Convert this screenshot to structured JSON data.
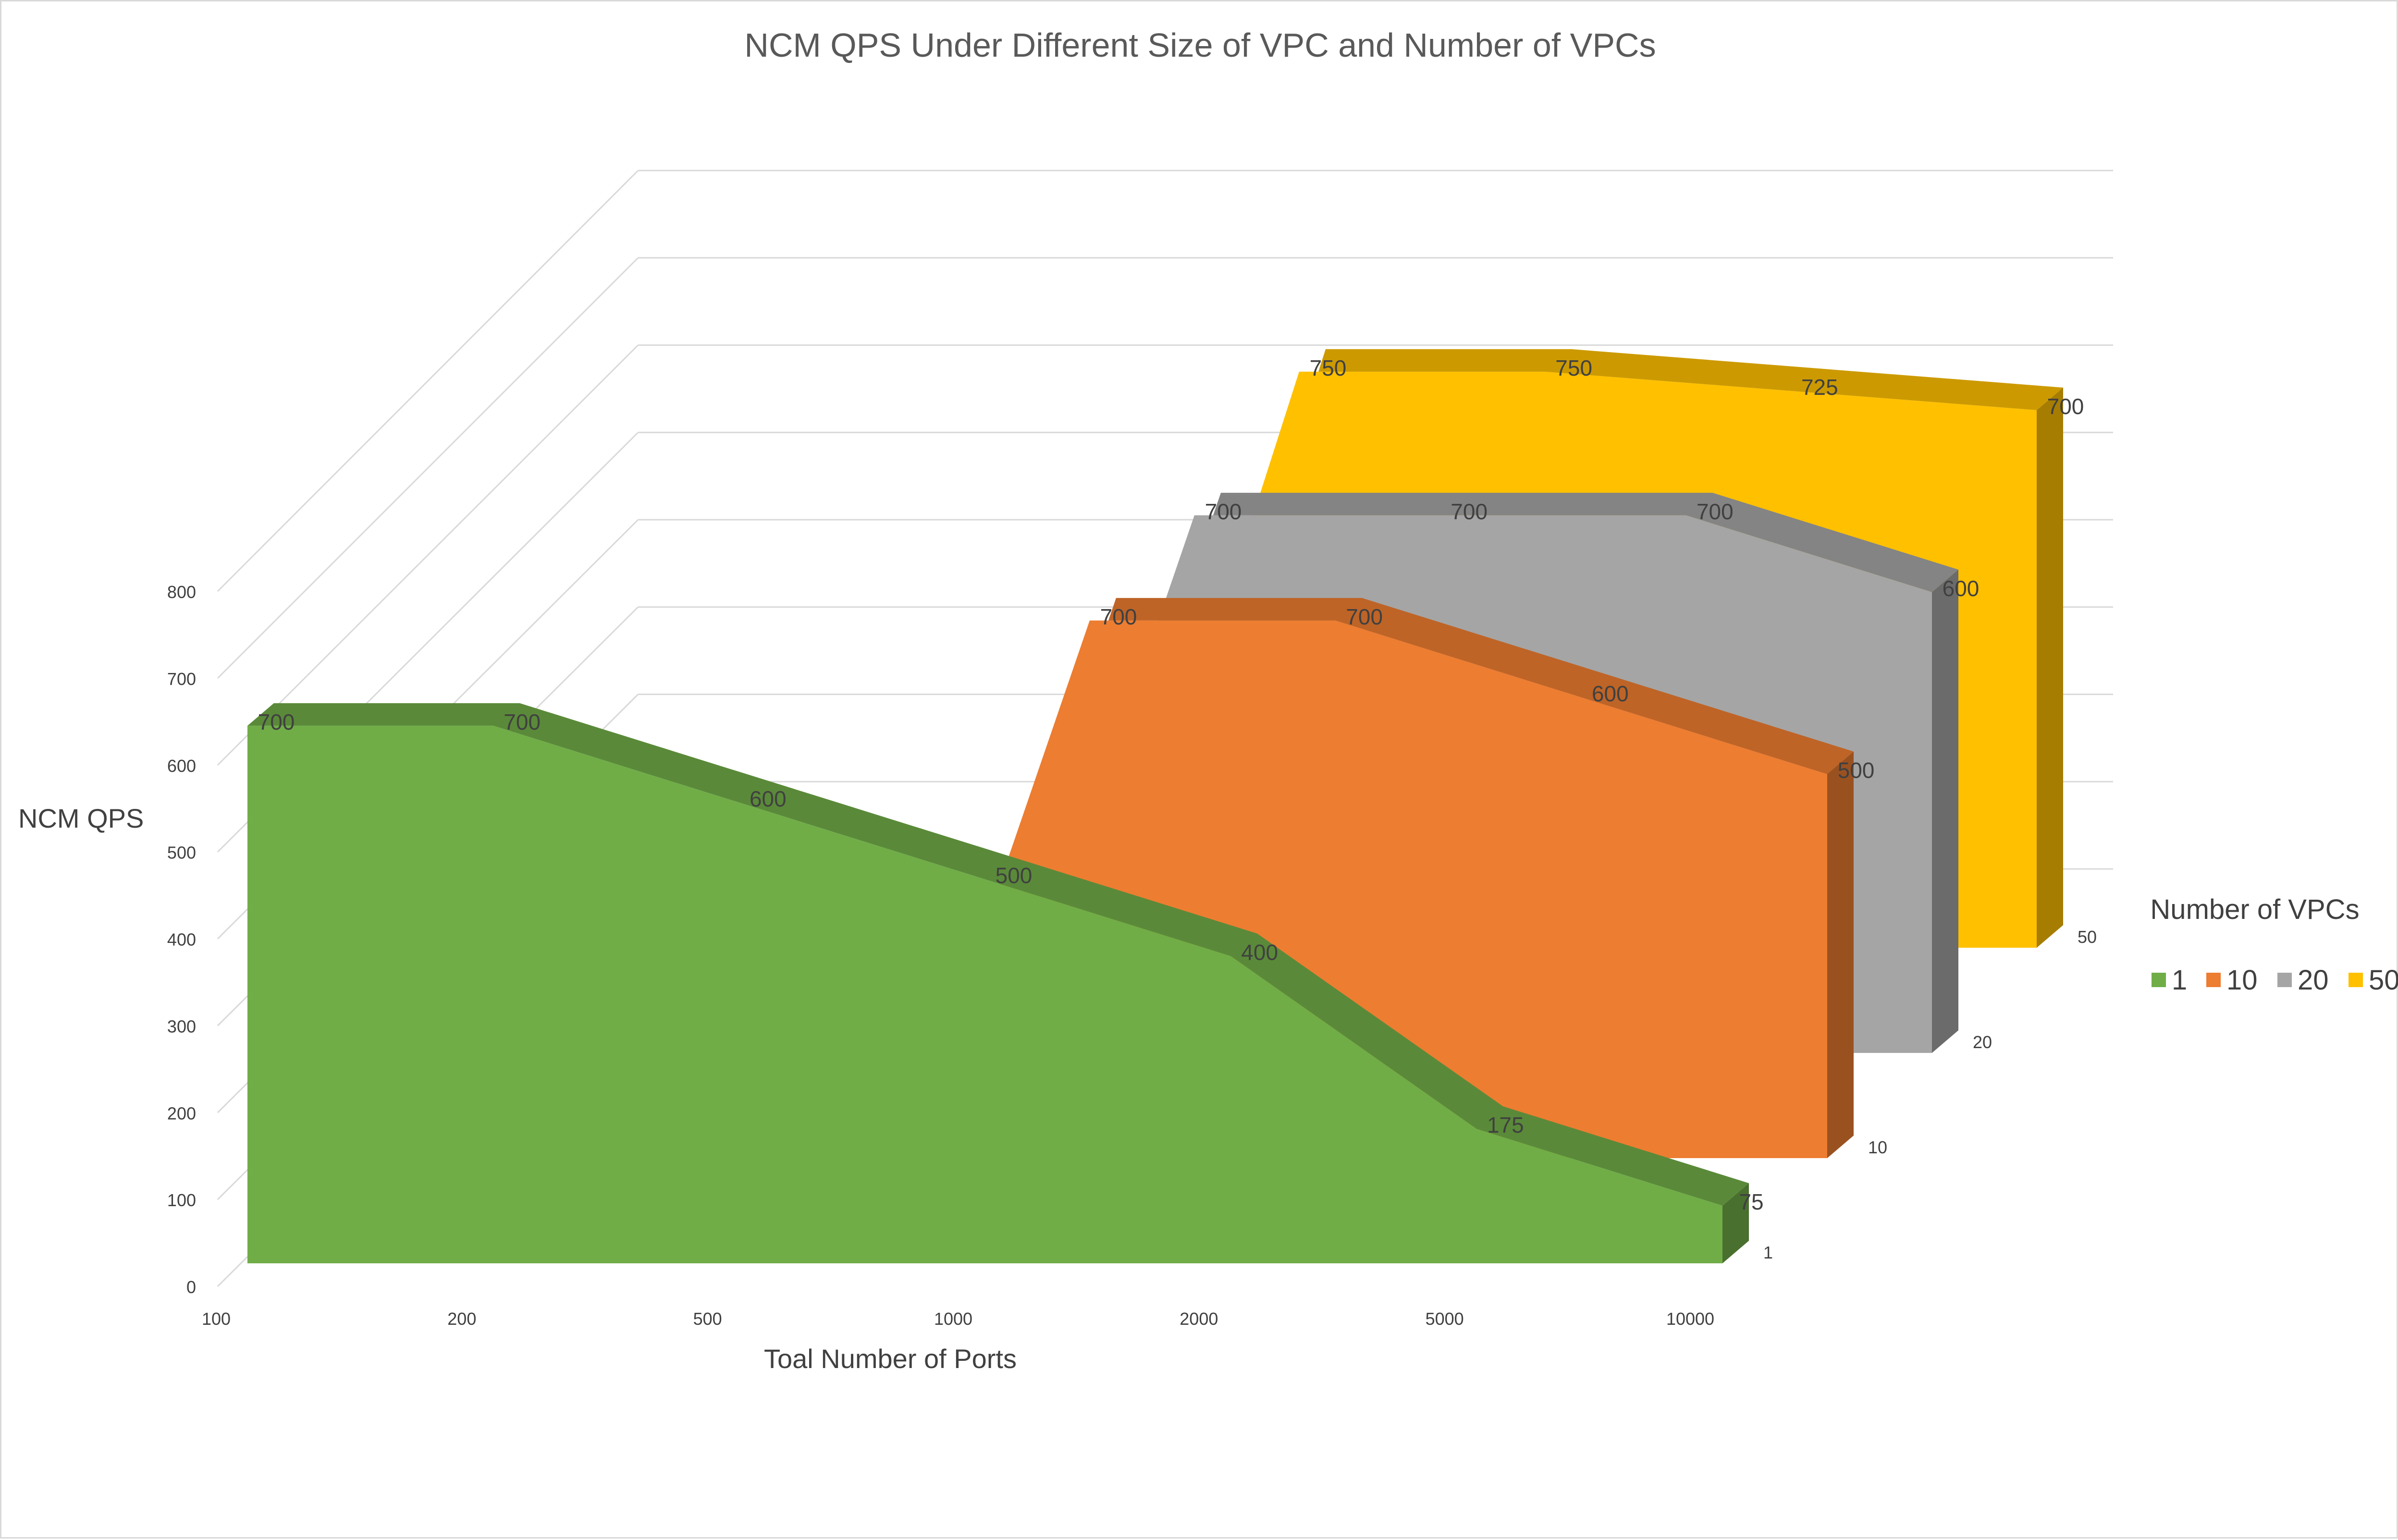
{
  "chart_data": {
    "type": "area",
    "subtype": "3d-area",
    "title": "NCM QPS Under Different Size of VPC and Number of VPCs",
    "xlabel": "Toal Number of Ports",
    "ylabel": "NCM QPS",
    "categories": [
      "100",
      "200",
      "500",
      "1000",
      "2000",
      "5000",
      "10000"
    ],
    "ylim": [
      0,
      800
    ],
    "yticks": [
      "0",
      "100",
      "200",
      "300",
      "400",
      "500",
      "600",
      "700",
      "800"
    ],
    "depth_axis_labels": [
      "1",
      "10",
      "20",
      "50"
    ],
    "legend_title": "Number of VPCs",
    "legend_position": "right",
    "grid": true,
    "series": [
      {
        "name": "1",
        "color": "#70AD47",
        "values": [
          700,
          700,
          600,
          500,
          400,
          175,
          75
        ],
        "labels": [
          "700",
          "700",
          "600",
          "500",
          "400",
          "175",
          "75"
        ]
      },
      {
        "name": "10",
        "color": "#ED7D31",
        "values": [
          null,
          null,
          null,
          700,
          700,
          600,
          500
        ],
        "labels": [
          "",
          "",
          "",
          "700",
          "700",
          "600",
          "500"
        ]
      },
      {
        "name": "20",
        "color": "#A5A5A5",
        "values": [
          null,
          null,
          null,
          700,
          700,
          700,
          600
        ],
        "labels": [
          "",
          "",
          "",
          "700",
          "700",
          "700",
          "600"
        ]
      },
      {
        "name": "50",
        "color": "#FFC000",
        "values": [
          null,
          null,
          null,
          750,
          750,
          725,
          700
        ],
        "labels": [
          "",
          "",
          "",
          "750",
          "750",
          "725",
          "700"
        ]
      }
    ]
  }
}
